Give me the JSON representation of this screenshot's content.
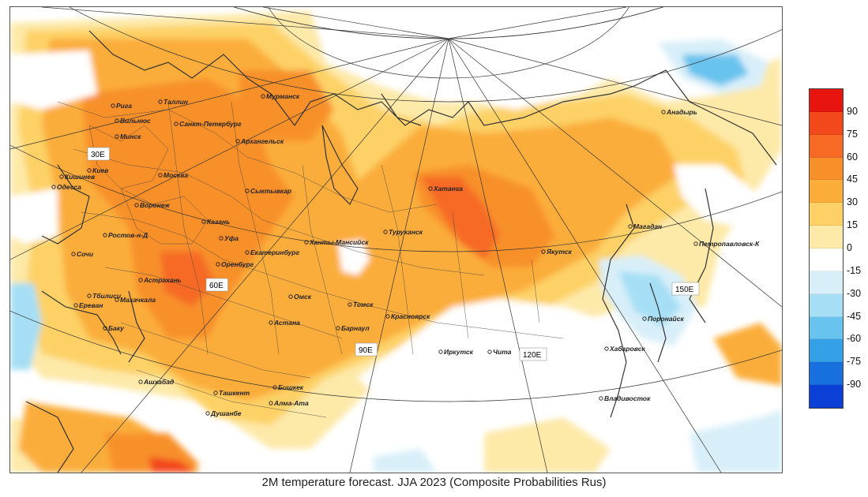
{
  "caption": "2M temperature forecast. JJA 2023 (Composite Probabilities Rus)",
  "colorbar": {
    "ticks": [
      "90",
      "75",
      "60",
      "45",
      "30",
      "15",
      "0",
      "-15",
      "-30",
      "-45",
      "-60",
      "-75",
      "-90"
    ],
    "colors": [
      "#e8140f",
      "#f3471c",
      "#f66a25",
      "#f8902a",
      "#fbad3a",
      "#fdd166",
      "#fde9a8",
      "#ffffff",
      "#d8eff9",
      "#a6dff5",
      "#69c3ef",
      "#34a0e6",
      "#1870df",
      "#0b3fd6"
    ]
  },
  "longitude_labels": [
    "30E",
    "60E",
    "90E",
    "120E",
    "150E"
  ],
  "cities": [
    "Мурманск",
    "Рига",
    "Таллин",
    "Вильнюс",
    "Санкт-Петербург",
    "Минск",
    "Архангельск",
    "Киев",
    "Кишинев",
    "Москва",
    "Одесса",
    "Сыктывкар",
    "Воронеж",
    "Казань",
    "Ростов-н-Д",
    "Уфа",
    "Сочи",
    "Екатеринбург",
    "Ханты-Мансийск",
    "Оренбург",
    "Астрахань",
    "Тбилиси",
    "Махачкала",
    "Ереван",
    "Баку",
    "Омск",
    "Астана",
    "Томск",
    "Барнаул",
    "Красноярск",
    "Туруханск",
    "Хатанга",
    "Якутск",
    "Иркутск",
    "Чита",
    "Магадан",
    "Петропавловск-К",
    "Анадырь",
    "Поронайск",
    "Хабаровск",
    "Владивосток",
    "Ашхабад",
    "Бишкек",
    "Ташкент",
    "Алма-Ата",
    "Душанбе"
  ]
}
